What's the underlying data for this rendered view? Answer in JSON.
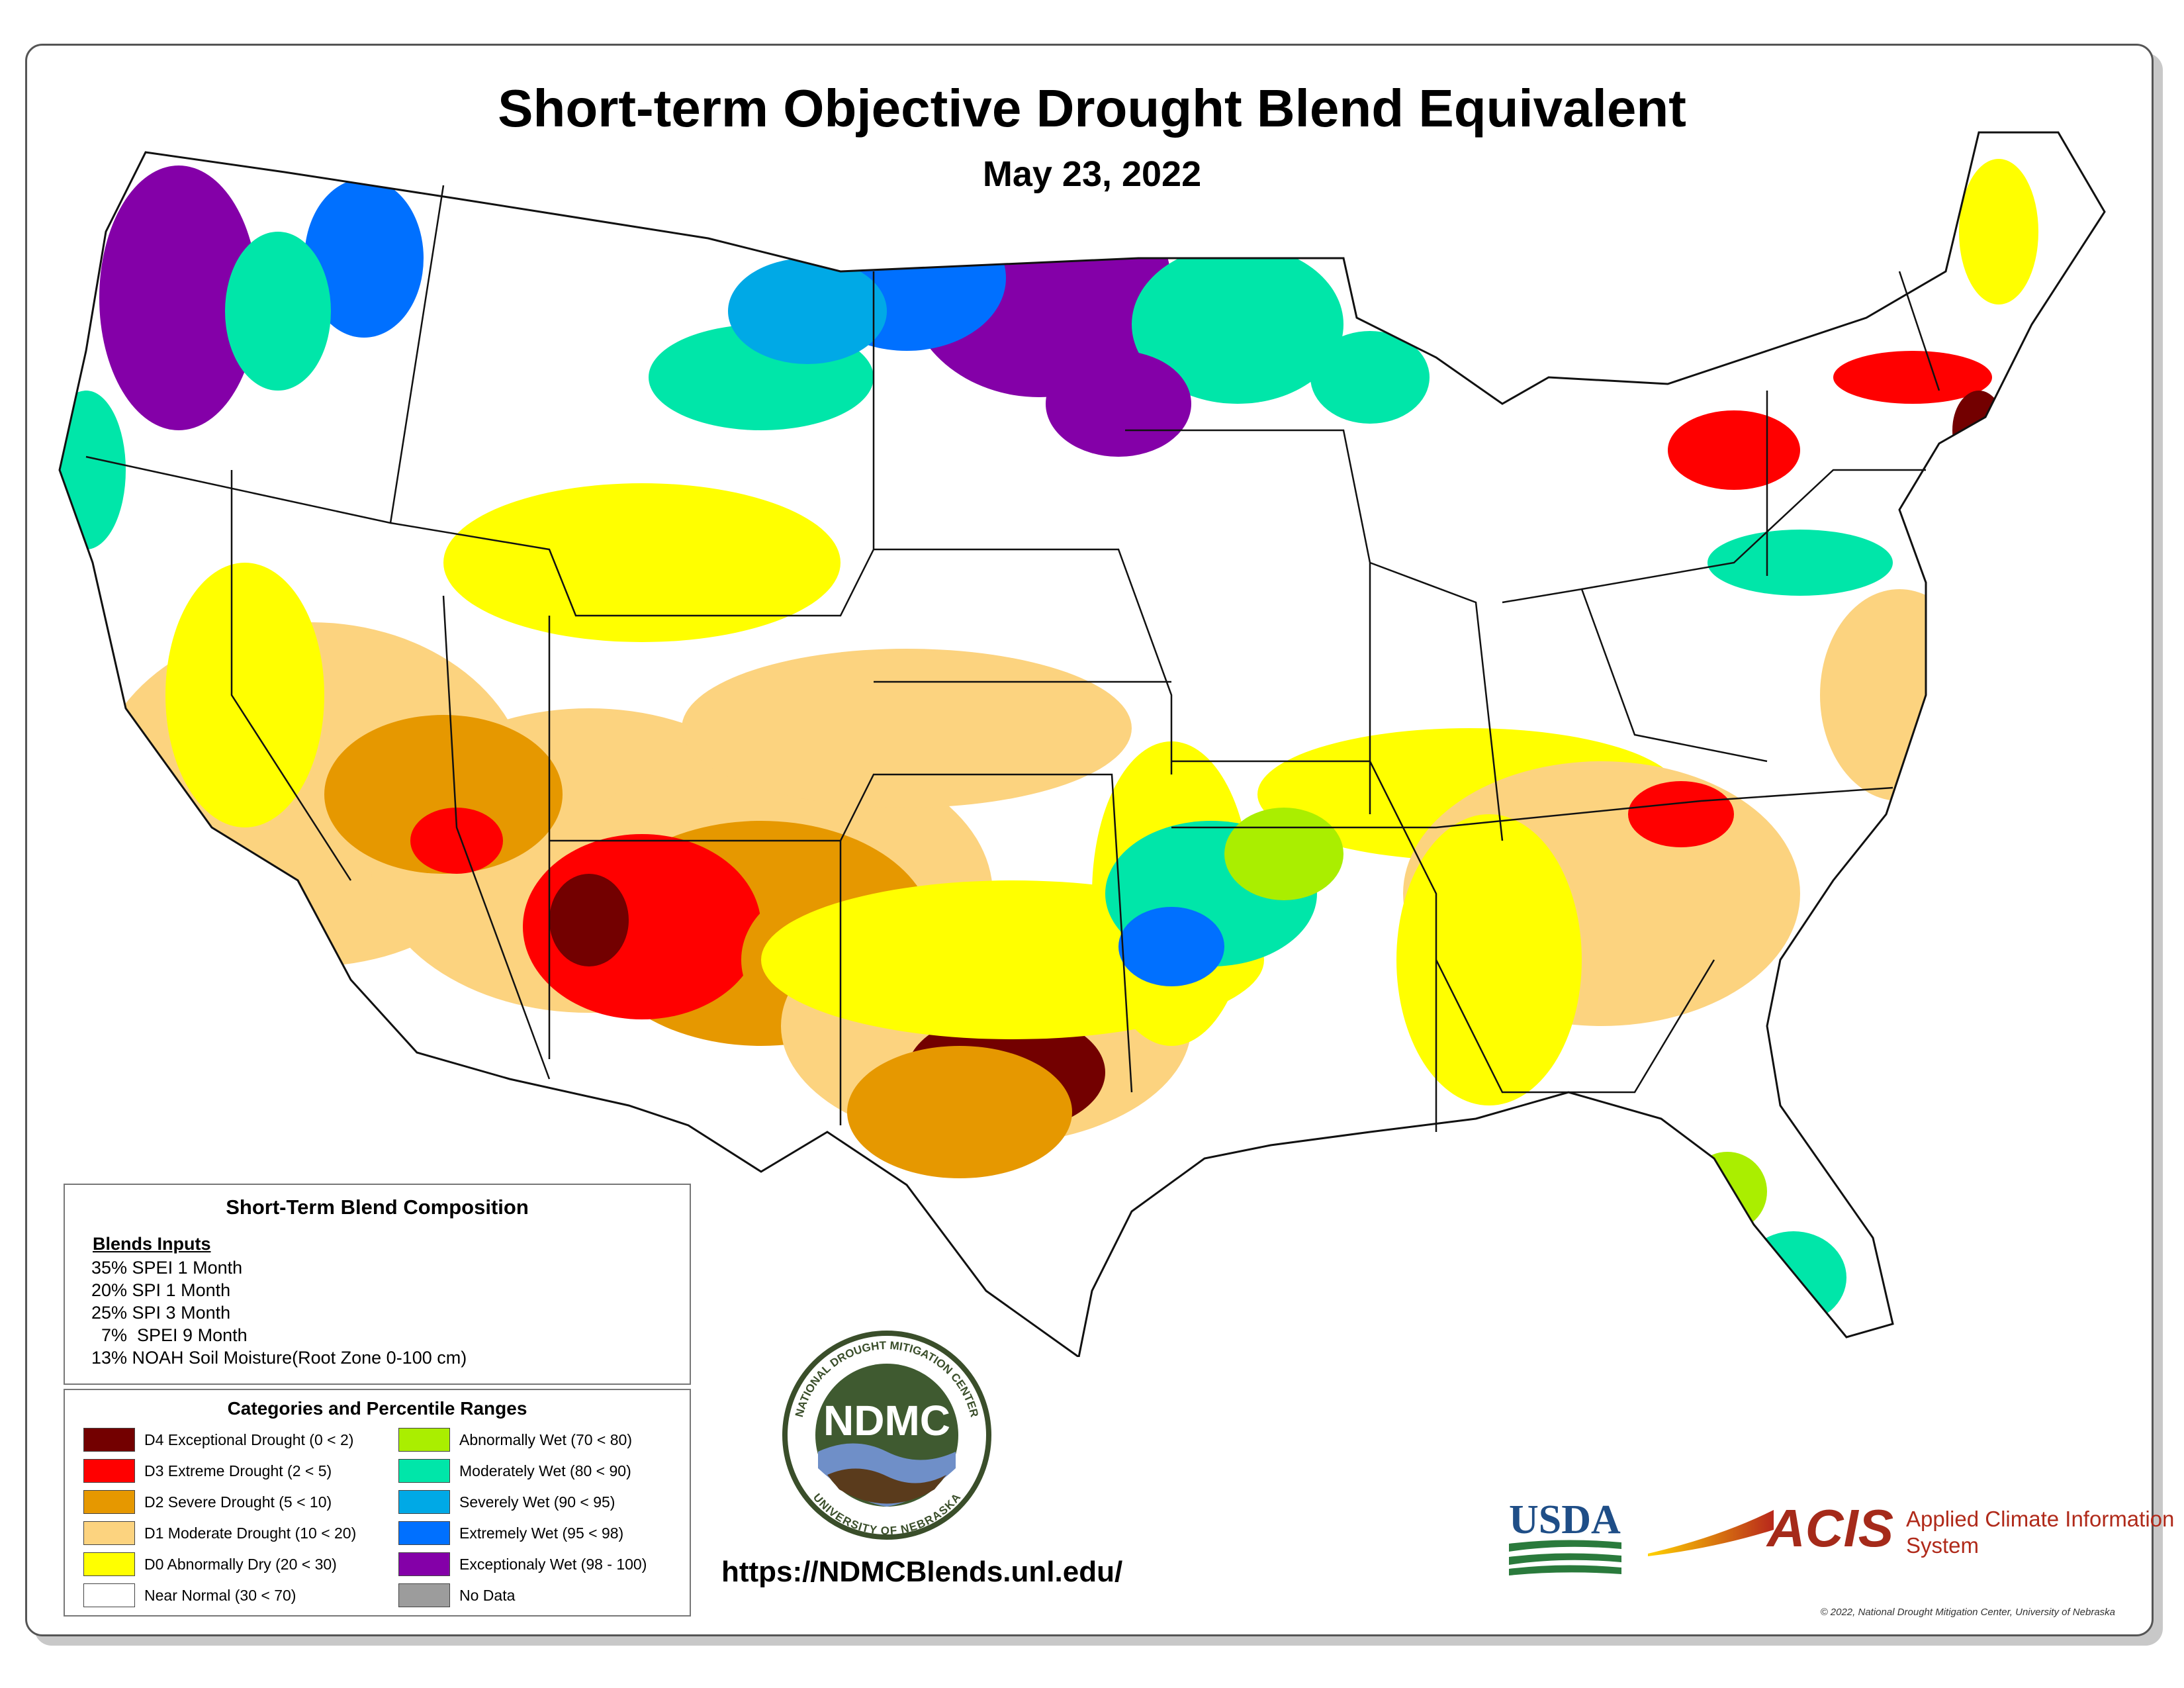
{
  "title": "Short-term Objective Drought Blend Equivalent",
  "date": "May 23, 2022",
  "composition": {
    "heading": "Short-Term Blend Composition",
    "inputs_label": "Blends Inputs",
    "inputs": [
      "35%  SPEI 1 Month",
      "20%  SPI 1 Month",
      "25%  SPI 3 Month",
      "  7%  SPEI 9 Month",
      "13% NOAH Soil Moisture(Root Zone 0-100 cm)"
    ]
  },
  "categories": {
    "heading": "Categories and Percentile Ranges",
    "items": [
      {
        "label": "D4 Exceptional Drought (0 < 2)",
        "color": "#730000"
      },
      {
        "label": "D3 Extreme Drought (2 < 5)",
        "color": "#ff0000"
      },
      {
        "label": "D2 Severe Drought (5 < 10)",
        "color": "#e69800"
      },
      {
        "label": "D1 Moderate Drought (10 < 20)",
        "color": "#fcd37f"
      },
      {
        "label": "D0 Abnormally Dry (20 < 30)",
        "color": "#ffff00"
      },
      {
        "label": "Near Normal (30 < 70)",
        "color": "#ffffff"
      },
      {
        "label": "Abnormally Wet (70 < 80)",
        "color": "#aaee00"
      },
      {
        "label": "Moderately Wet (80 < 90)",
        "color": "#00e6a9"
      },
      {
        "label": "Severely Wet (90 < 95)",
        "color": "#00a9e6"
      },
      {
        "label": "Extremely Wet (95 < 98)",
        "color": "#0070ff"
      },
      {
        "label": "Exceptionaly Wet (98 - 100)",
        "color": "#8400a8"
      },
      {
        "label": "No Data",
        "color": "#9c9c9c"
      }
    ]
  },
  "logos": {
    "ndmc_text": "NDMC",
    "ndmc_ring_top": "NATIONAL DROUGHT MITIGATION CENTER",
    "ndmc_ring_bottom": "UNIVERSITY OF NEBRASKA",
    "usda": "USDA",
    "acis": "ACIS",
    "acis_sub": "Applied Climate Information System"
  },
  "url": "https://NDMCBlends.unl.edu/",
  "copyright": "© 2022, National Drought Mitigation Center, University of Nebraska"
}
